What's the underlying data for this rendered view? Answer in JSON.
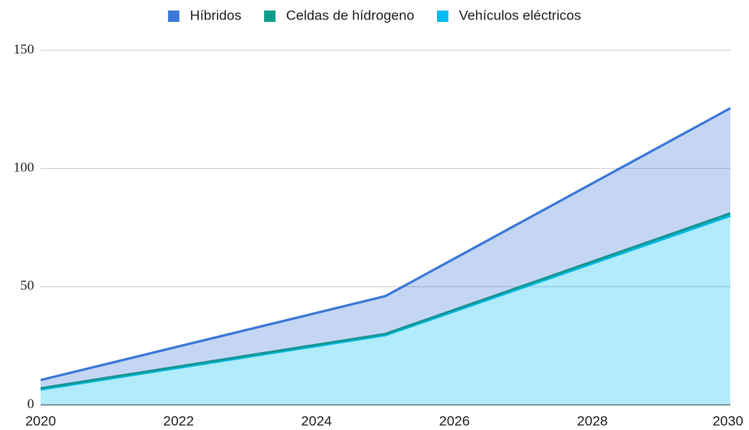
{
  "chart_data": {
    "type": "area",
    "stacked": true,
    "x": [
      2020,
      2025,
      2030
    ],
    "series": [
      {
        "name": "Híbridos",
        "color": "#3c78d8",
        "values": [
          3.5,
          16,
          44.5
        ]
      },
      {
        "name": "Celdas de hídrogeno",
        "color": "#0f9d8a",
        "values": [
          0.5,
          0.5,
          1
        ]
      },
      {
        "name": "Vehículos eléctricos",
        "color": "#00bcf2",
        "values": [
          6.5,
          29.5,
          80
        ]
      }
    ],
    "xlim": [
      2020,
      2030
    ],
    "xticks": [
      2020,
      2022,
      2024,
      2026,
      2028,
      2030
    ],
    "ylim": [
      0,
      150
    ],
    "yticks": [
      0,
      50,
      100,
      150
    ],
    "grid": true,
    "legend": "top"
  }
}
